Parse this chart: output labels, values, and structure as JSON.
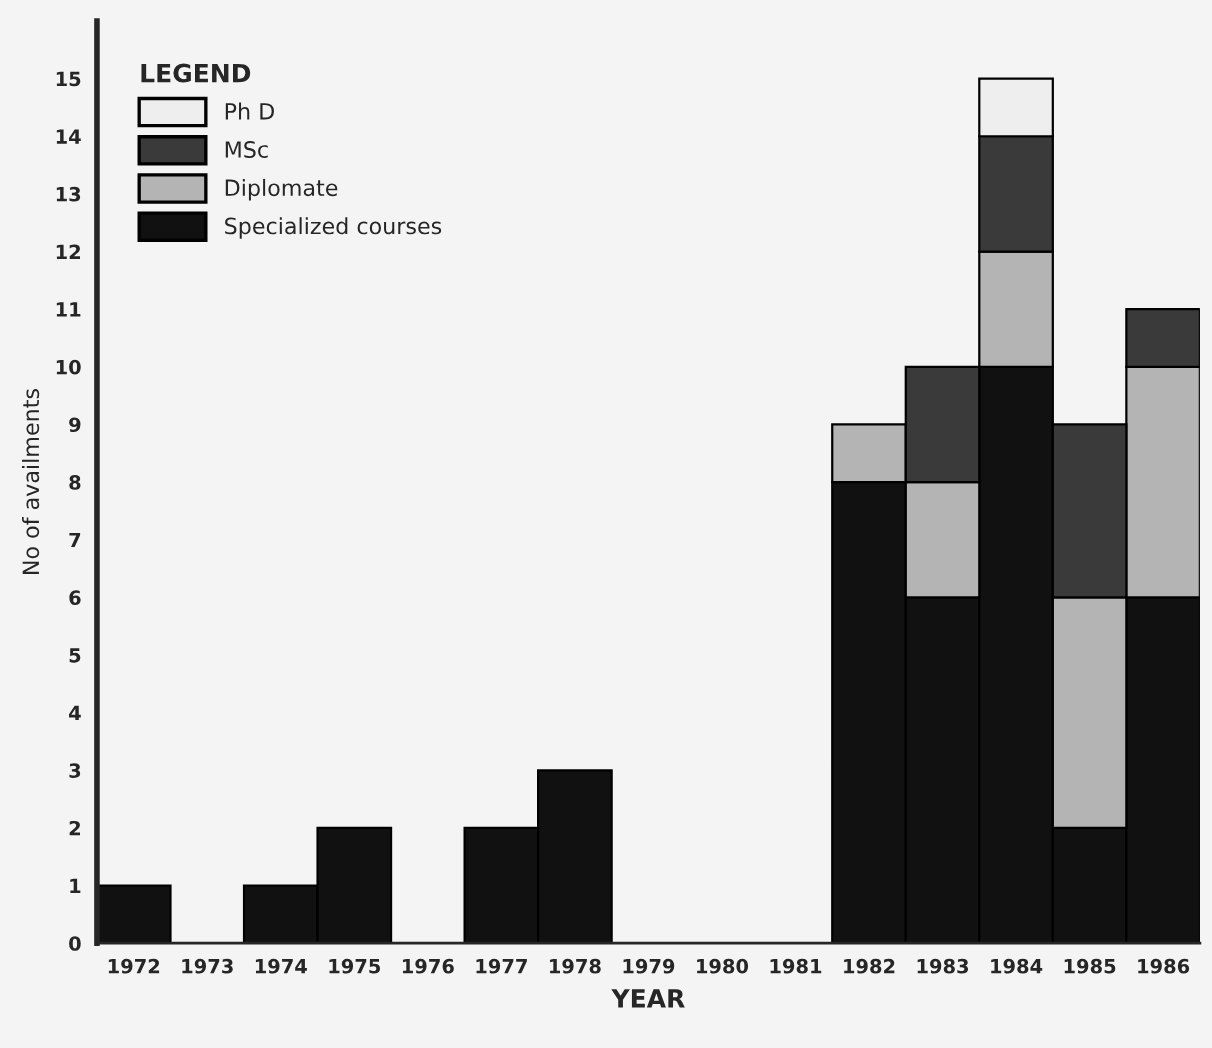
{
  "chart_data": {
    "type": "bar",
    "stacked": true,
    "xlabel": "YEAR",
    "ylabel": "No of availments",
    "legend_title": "LEGEND",
    "legend": "top left",
    "categories": [
      "1972",
      "1973",
      "1974",
      "1975",
      "1976",
      "1977",
      "1978",
      "1979",
      "1980",
      "1981",
      "1982",
      "1983",
      "1984",
      "1985",
      "1986"
    ],
    "series": [
      {
        "name": "Specialized courses",
        "color": "#111111",
        "values": [
          1,
          0,
          1,
          2,
          0,
          2,
          3,
          0,
          0,
          0,
          8,
          6,
          10,
          2,
          6
        ]
      },
      {
        "name": "Diplomate",
        "color": "#b4b4b4",
        "values": [
          0,
          0,
          0,
          0,
          0,
          0,
          0,
          0,
          0,
          0,
          1,
          2,
          2,
          4,
          4
        ]
      },
      {
        "name": "MSc",
        "color": "#3a3a3a",
        "values": [
          0,
          0,
          0,
          0,
          0,
          0,
          0,
          0,
          0,
          0,
          0,
          2,
          2,
          3,
          1
        ]
      },
      {
        "name": "Ph D",
        "color": "#eeeeee",
        "values": [
          0,
          0,
          0,
          0,
          0,
          0,
          0,
          0,
          0,
          0,
          0,
          0,
          1,
          0,
          0
        ]
      }
    ],
    "ylim": [
      0,
      16
    ],
    "yticks": [
      0,
      1,
      2,
      3,
      4,
      5,
      6,
      7,
      8,
      9,
      10,
      11,
      12,
      13,
      14,
      15
    ],
    "grid": false
  }
}
